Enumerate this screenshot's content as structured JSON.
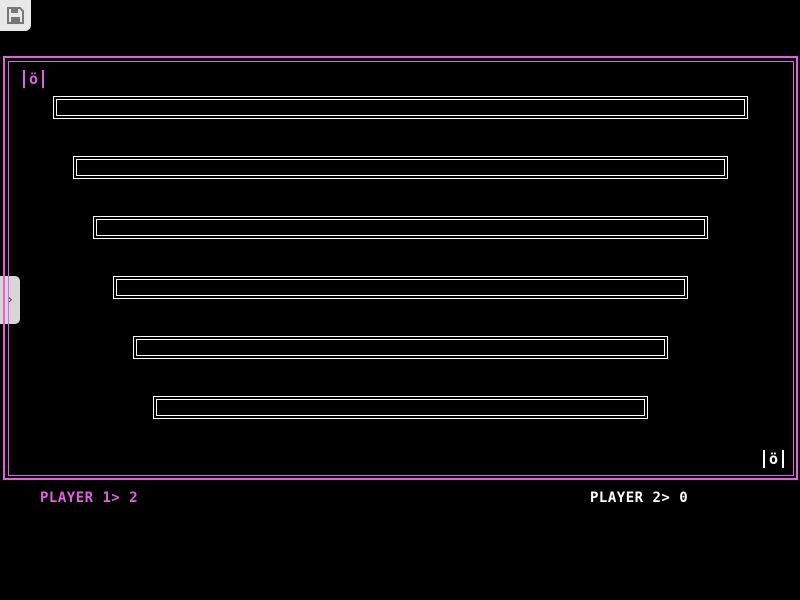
{
  "toolbar": {
    "save_icon": "floppy-disk-icon",
    "side_panel_icon": "chevron-right-icon",
    "side_label": "›"
  },
  "colors": {
    "player1": "#e060e0",
    "player2": "#ffffff",
    "border": "#e060e0",
    "background": "#000000"
  },
  "players": [
    {
      "label": "PLAYER 1> 2",
      "score": 2,
      "icon_glyph": "ö"
    },
    {
      "label": "PLAYER 2> 0",
      "score": 0,
      "icon_glyph": "ö"
    }
  ],
  "bars_count": 6
}
